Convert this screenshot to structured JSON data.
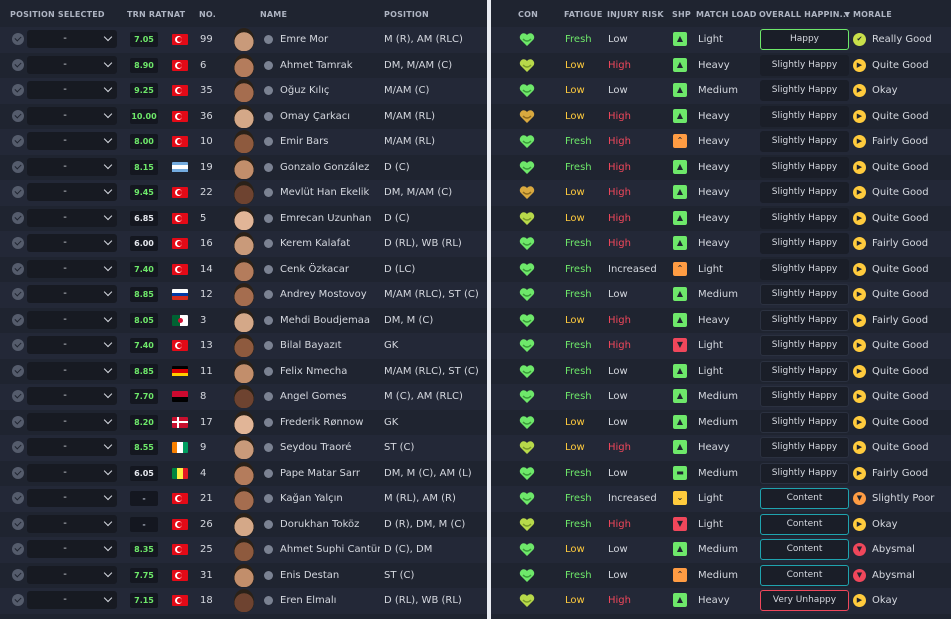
{
  "left_headers": {
    "position_selected": "POSITION SELECTED",
    "trn_rat": "TRN RAT",
    "nat": "NAT",
    "no": "NO.",
    "name": "NAME",
    "position": "POSITION"
  },
  "right_headers": {
    "con": "CON",
    "fatigue": "FATIGUE",
    "injury_risk": "INJURY RISK",
    "shp": "SHP",
    "match_load": "MATCH LOAD",
    "overall_happiness": "OVERALL HAPPIN...",
    "morale": "MORALE"
  },
  "colors": {
    "good": "#6ee86a",
    "warn": "#ffcb3d",
    "bad": "#f0475b",
    "orange": "#ff9c43",
    "teal": "#1fa3ae"
  },
  "icons": {
    "checkbox": "check-circle-icon",
    "dropdown": "chevron-down-icon",
    "person": "person-icon",
    "condition": "heart-icon",
    "sharpness": "sharpness-icon",
    "morale": "morale-icon",
    "sort": "sort-down-icon"
  },
  "players": [
    {
      "sel": "-",
      "trn": "7.05",
      "nat": "TUR",
      "no": "99",
      "name": "Emre Mor",
      "position": "M (R), AM (RLC)",
      "con": "good",
      "fatigue": "Fresh",
      "injury": "Low",
      "shp": "good",
      "load": "Light",
      "happiness": "Happy",
      "hap_border": "good",
      "morale_icon": "good",
      "morale": "Really Good"
    },
    {
      "sel": "-",
      "trn": "8.90",
      "nat": "TUR",
      "no": "6",
      "name": "Ahmet Tamrak",
      "position": "DM, M/AM (C)",
      "con": "ok",
      "fatigue": "Low",
      "injury": "High",
      "shp": "good",
      "load": "Heavy",
      "happiness": "Slightly Happy",
      "hap_border": "none",
      "morale_icon": "warn",
      "morale": "Quite Good"
    },
    {
      "sel": "-",
      "trn": "9.25",
      "nat": "TUR",
      "no": "35",
      "name": "Oğuz Kılıç",
      "position": "M/AM (C)",
      "con": "good",
      "fatigue": "Low",
      "injury": "Low",
      "shp": "good",
      "load": "Medium",
      "happiness": "Slightly Happy",
      "hap_border": "none",
      "morale_icon": "warn",
      "morale": "Okay"
    },
    {
      "sel": "-",
      "trn": "10.00",
      "nat": "TUR",
      "no": "36",
      "name": "Omay Çarkacı",
      "position": "M/AM (RL)",
      "con": "low",
      "fatigue": "Low",
      "injury": "High",
      "shp": "good",
      "load": "Heavy",
      "happiness": "Slightly Happy",
      "hap_border": "none",
      "morale_icon": "warn",
      "morale": "Quite Good"
    },
    {
      "sel": "-",
      "trn": "8.00",
      "nat": "TUR",
      "no": "10",
      "name": "Emir Bars",
      "position": "M/AM (RL)",
      "con": "good",
      "fatigue": "Fresh",
      "injury": "High",
      "shp": "orange",
      "load": "Heavy",
      "happiness": "Slightly Happy",
      "hap_border": "none",
      "morale_icon": "warn",
      "morale": "Fairly Good"
    },
    {
      "sel": "-",
      "trn": "8.15",
      "nat": "ARG",
      "no": "19",
      "name": "Gonzalo González",
      "position": "D (C)",
      "con": "good",
      "fatigue": "Fresh",
      "injury": "High",
      "shp": "good",
      "load": "Heavy",
      "happiness": "Slightly Happy",
      "hap_border": "none",
      "morale_icon": "warn",
      "morale": "Quite Good"
    },
    {
      "sel": "-",
      "trn": "9.45",
      "nat": "TUR",
      "no": "22",
      "name": "Mevlüt Han Ekelik",
      "position": "DM, M/AM (C)",
      "con": "low",
      "fatigue": "Low",
      "injury": "High",
      "shp": "good",
      "load": "Heavy",
      "happiness": "Slightly Happy",
      "hap_border": "none",
      "morale_icon": "warn",
      "morale": "Quite Good"
    },
    {
      "sel": "-",
      "trn": "6.85",
      "nat": "TUR",
      "no": "5",
      "name": "Emrecan Uzunhan",
      "position": "D (C)",
      "con": "ok",
      "fatigue": "Low",
      "injury": "High",
      "shp": "good",
      "load": "Heavy",
      "happiness": "Slightly Happy",
      "hap_border": "none",
      "morale_icon": "warn",
      "morale": "Quite Good"
    },
    {
      "sel": "-",
      "trn": "6.00",
      "nat": "TUR",
      "no": "16",
      "name": "Kerem Kalafat",
      "position": "D (RL), WB (RL)",
      "con": "good",
      "fatigue": "Fresh",
      "injury": "High",
      "shp": "good",
      "load": "Heavy",
      "happiness": "Slightly Happy",
      "hap_border": "none",
      "morale_icon": "warn",
      "morale": "Fairly Good"
    },
    {
      "sel": "-",
      "trn": "7.40",
      "nat": "TUR",
      "no": "14",
      "name": "Cenk Özkacar",
      "position": "D (LC)",
      "con": "good",
      "fatigue": "Fresh",
      "injury": "Increased",
      "shp": "orange",
      "load": "Light",
      "happiness": "Slightly Happy",
      "hap_border": "none",
      "morale_icon": "warn",
      "morale": "Quite Good"
    },
    {
      "sel": "-",
      "trn": "8.85",
      "nat": "RUS",
      "no": "12",
      "name": "Andrey Mostovoy",
      "position": "M/AM (RLC), ST (C)",
      "con": "good",
      "fatigue": "Fresh",
      "injury": "Low",
      "shp": "good",
      "load": "Medium",
      "happiness": "Slightly Happy",
      "hap_border": "dark",
      "morale_icon": "warn",
      "morale": "Quite Good"
    },
    {
      "sel": "-",
      "trn": "8.05",
      "nat": "ALG",
      "no": "3",
      "name": "Mehdi Boudjemaa",
      "position": "DM, M (C)",
      "con": "good",
      "fatigue": "Low",
      "injury": "High",
      "shp": "good",
      "load": "Heavy",
      "happiness": "Slightly Happy",
      "hap_border": "dark",
      "morale_icon": "warn",
      "morale": "Fairly Good"
    },
    {
      "sel": "-",
      "trn": "7.40",
      "nat": "TUR",
      "no": "13",
      "name": "Bilal Bayazıt",
      "position": "GK",
      "con": "good",
      "fatigue": "Fresh",
      "injury": "High",
      "shp": "red",
      "load": "Light",
      "happiness": "Slightly Happy",
      "hap_border": "dark",
      "morale_icon": "warn",
      "morale": "Quite Good"
    },
    {
      "sel": "-",
      "trn": "8.85",
      "nat": "GER",
      "no": "11",
      "name": "Felix Nmecha",
      "position": "M/AM (RLC), ST (C)",
      "con": "good",
      "fatigue": "Fresh",
      "injury": "Low",
      "shp": "good",
      "load": "Light",
      "happiness": "Slightly Happy",
      "hap_border": "dark",
      "morale_icon": "warn",
      "morale": "Quite Good"
    },
    {
      "sel": "-",
      "trn": "7.70",
      "nat": "ANG",
      "no": "8",
      "name": "Angel Gomes",
      "position": "M (C), AM (RLC)",
      "con": "good",
      "fatigue": "Fresh",
      "injury": "Low",
      "shp": "good",
      "load": "Medium",
      "happiness": "Slightly Happy",
      "hap_border": "dark",
      "morale_icon": "warn",
      "morale": "Quite Good"
    },
    {
      "sel": "-",
      "trn": "8.20",
      "nat": "DEN",
      "no": "17",
      "name": "Frederik Rønnow",
      "position": "GK",
      "con": "good",
      "fatigue": "Low",
      "injury": "Low",
      "shp": "good",
      "load": "Medium",
      "happiness": "Slightly Happy",
      "hap_border": "dark",
      "morale_icon": "warn",
      "morale": "Quite Good"
    },
    {
      "sel": "-",
      "trn": "8.55",
      "nat": "CIV",
      "no": "9",
      "name": "Seydou Traoré",
      "position": "ST (C)",
      "con": "ok",
      "fatigue": "Low",
      "injury": "High",
      "shp": "good",
      "load": "Heavy",
      "happiness": "Slightly Happy",
      "hap_border": "dark",
      "morale_icon": "warn",
      "morale": "Quite Good"
    },
    {
      "sel": "-",
      "trn": "6.05",
      "nat": "SEN",
      "no": "4",
      "name": "Pape Matar Sarr",
      "position": "DM, M (C), AM (L)",
      "con": "good",
      "fatigue": "Fresh",
      "injury": "Low",
      "shp": "neutral",
      "load": "Medium",
      "happiness": "Slightly Happy",
      "hap_border": "dark",
      "morale_icon": "warn",
      "morale": "Fairly Good"
    },
    {
      "sel": "-",
      "trn": "-",
      "nat": "TUR",
      "no": "21",
      "name": "Kağan Yalçın",
      "position": "M (RL), AM (R)",
      "con": "good",
      "fatigue": "Fresh",
      "injury": "Increased",
      "shp": "warn",
      "load": "Light",
      "happiness": "Content",
      "hap_border": "teal",
      "morale_icon": "orange",
      "morale": "Slightly Poor"
    },
    {
      "sel": "-",
      "trn": "-",
      "nat": "TUR",
      "no": "26",
      "name": "Dorukhan Toköz",
      "position": "D (R), DM, M (C)",
      "con": "ok",
      "fatigue": "Fresh",
      "injury": "High",
      "shp": "red",
      "load": "Light",
      "happiness": "Content",
      "hap_border": "teal",
      "morale_icon": "warn",
      "morale": "Okay"
    },
    {
      "sel": "-",
      "trn": "8.35",
      "nat": "TUR",
      "no": "25",
      "name": "Ahmet Suphi Cantürk",
      "position": "D (C), DM",
      "con": "good",
      "fatigue": "Low",
      "injury": "Low",
      "shp": "good",
      "load": "Medium",
      "happiness": "Content",
      "hap_border": "teal",
      "morale_icon": "bad",
      "morale": "Abysmal"
    },
    {
      "sel": "-",
      "trn": "7.75",
      "nat": "TUR",
      "no": "31",
      "name": "Enis Destan",
      "position": "ST (C)",
      "con": "good",
      "fatigue": "Fresh",
      "injury": "Low",
      "shp": "orange",
      "load": "Medium",
      "happiness": "Content",
      "hap_border": "teal",
      "morale_icon": "bad",
      "morale": "Abysmal"
    },
    {
      "sel": "-",
      "trn": "7.15",
      "nat": "TUR",
      "no": "18",
      "name": "Eren Elmalı",
      "position": "D (RL), WB (RL)",
      "con": "ok",
      "fatigue": "Low",
      "injury": "High",
      "shp": "good",
      "load": "Heavy",
      "happiness": "Very Unhappy",
      "hap_border": "bad",
      "morale_icon": "warn",
      "morale": "Okay"
    }
  ]
}
